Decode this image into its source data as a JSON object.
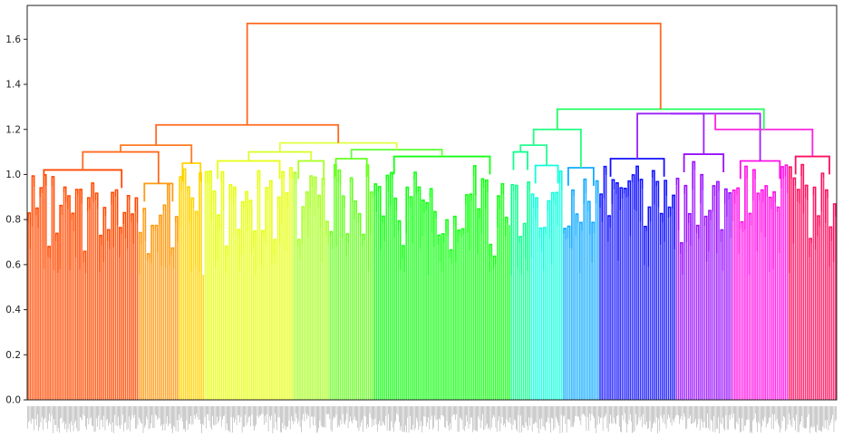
{
  "chart_data": {
    "type": "dendrogram",
    "title": "",
    "xlabel": "",
    "ylabel": "",
    "ylim": [
      0,
      1.75
    ],
    "y_ticks": [
      "0.0",
      "0.2",
      "0.4",
      "0.6",
      "0.8",
      "1.0",
      "1.2",
      "1.4",
      "1.6"
    ],
    "y_tick_values": [
      0.0,
      0.2,
      0.4,
      0.6,
      0.8,
      1.0,
      1.2,
      1.4,
      1.6
    ],
    "grid": false,
    "legend": "none",
    "leaf_labels": "dense, too small to read",
    "root_height": 1.67,
    "clusters": [
      {
        "color": "#ff4a00",
        "leaves": 138,
        "top": 1.02
      },
      {
        "color": "#ff9a10",
        "leaves": 50,
        "top": 0.96
      },
      {
        "color": "#ffd400",
        "leaves": 32,
        "top": 1.05
      },
      {
        "color": "#e6ff10",
        "leaves": 110,
        "top": 1.06
      },
      {
        "color": "#a8ff20",
        "leaves": 45,
        "top": 1.06
      },
      {
        "color": "#66ff20",
        "leaves": 55,
        "top": 1.07
      },
      {
        "color": "#14ff14",
        "leaves": 170,
        "top": 1.08
      },
      {
        "color": "#10ff90",
        "leaves": 25,
        "top": 1.1
      },
      {
        "color": "#10ffdd",
        "leaves": 40,
        "top": 1.04
      },
      {
        "color": "#10aaff",
        "leaves": 45,
        "top": 1.03
      },
      {
        "color": "#1010ff",
        "leaves": 95,
        "top": 1.07
      },
      {
        "color": "#9a10ff",
        "leaves": 70,
        "top": 1.09
      },
      {
        "color": "#ff10e6",
        "leaves": 70,
        "top": 1.06
      },
      {
        "color": "#ff1060",
        "leaves": 60,
        "top": 1.08
      }
    ],
    "links": [
      {
        "from": [
          0,
          1
        ],
        "height": 1.1,
        "color": "#ff6a20"
      },
      {
        "from": [
          "a",
          2
        ],
        "height": 1.13,
        "color": "#ff7a20"
      },
      {
        "from": [
          3,
          4
        ],
        "height": 1.1,
        "color": "#d8ff30"
      },
      {
        "from": [
          5,
          6
        ],
        "height": 1.11,
        "color": "#66ff40"
      },
      {
        "from": [
          "b",
          "c"
        ],
        "height": 1.14,
        "color": "#e0ff40"
      },
      {
        "from": [
          "d",
          "e"
        ],
        "height": 1.22,
        "color": "#ff6a20"
      },
      {
        "from": [
          7,
          8
        ],
        "height": 1.13,
        "color": "#20ff90"
      },
      {
        "from": [
          "f",
          9
        ],
        "height": 1.2,
        "color": "#20ff80"
      },
      {
        "from": [
          10,
          11
        ],
        "height": 1.27,
        "color": "#9a20ff"
      },
      {
        "from": [
          "h",
          12
        ],
        "height": 1.27,
        "color": "#a020ff"
      },
      {
        "from": [
          "i",
          13
        ],
        "height": 1.2,
        "color": "#ff20e0"
      },
      {
        "from": [
          "g",
          "j"
        ],
        "height": 1.29,
        "color": "#20ff60"
      },
      {
        "from": [
          "root_left",
          "root_right"
        ],
        "height": 1.67,
        "color": "#ff6a20"
      }
    ]
  }
}
